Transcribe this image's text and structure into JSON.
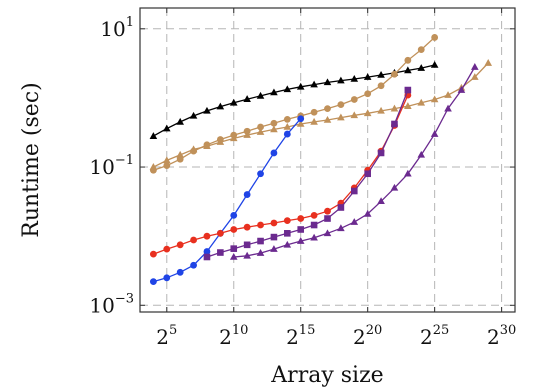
{
  "chart_data": {
    "type": "line",
    "xlabel": "Array size",
    "ylabel": "Runtime (sec)",
    "x_scale": "log2",
    "y_scale": "log10",
    "xlim": [
      3,
      31
    ],
    "ylim": [
      0.0008,
      20
    ],
    "grid": true,
    "x_ticks": [
      {
        "base": "2",
        "exp": "5",
        "value": 5
      },
      {
        "base": "2",
        "exp": "10",
        "value": 10
      },
      {
        "base": "2",
        "exp": "15",
        "value": 15
      },
      {
        "base": "2",
        "exp": "20",
        "value": 20
      },
      {
        "base": "2",
        "exp": "25",
        "value": 25
      },
      {
        "base": "2",
        "exp": "30",
        "value": 30
      }
    ],
    "y_ticks": [
      {
        "base": "10",
        "exp": "1",
        "value": 10
      },
      {
        "base": "10",
        "exp": "−1",
        "value": 0.1
      },
      {
        "base": "10",
        "exp": "−3",
        "value": 0.001
      }
    ],
    "series": [
      {
        "color": "#000000",
        "marker": "triangle",
        "x": [
          4,
          5,
          6,
          7,
          8,
          9,
          10,
          11,
          12,
          13,
          14,
          15,
          16,
          17,
          18,
          19,
          20,
          21,
          22,
          23,
          24,
          25
        ],
        "y": [
          0.28,
          0.36,
          0.45,
          0.55,
          0.65,
          0.75,
          0.85,
          0.96,
          1.07,
          1.2,
          1.33,
          1.45,
          1.56,
          1.68,
          1.78,
          1.88,
          2.0,
          2.15,
          2.3,
          2.5,
          2.7,
          3.0
        ]
      },
      {
        "color": "#c0915a",
        "marker": "circle",
        "x": [
          4,
          5,
          6,
          7,
          8,
          9,
          10,
          11,
          12,
          13,
          14,
          15,
          16,
          17,
          18,
          19,
          20,
          21,
          22,
          23,
          24,
          25
        ],
        "y": [
          0.09,
          0.105,
          0.13,
          0.17,
          0.21,
          0.25,
          0.29,
          0.33,
          0.38,
          0.43,
          0.49,
          0.55,
          0.62,
          0.7,
          0.8,
          0.95,
          1.15,
          1.5,
          2.2,
          3.5,
          5.0,
          7.5
        ]
      },
      {
        "color": "#c0915a",
        "marker": "triangle",
        "x": [
          4,
          5,
          6,
          7,
          8,
          9,
          10,
          11,
          12,
          13,
          14,
          15,
          16,
          17,
          18,
          19,
          20,
          21,
          22,
          23,
          24,
          25,
          26,
          27,
          28,
          29
        ],
        "y": [
          0.1,
          0.125,
          0.15,
          0.18,
          0.2,
          0.23,
          0.26,
          0.29,
          0.32,
          0.35,
          0.38,
          0.42,
          0.45,
          0.48,
          0.52,
          0.56,
          0.6,
          0.65,
          0.7,
          0.76,
          0.85,
          0.95,
          1.1,
          1.4,
          2.0,
          3.2
        ]
      },
      {
        "color": "#1f44e6",
        "marker": "circle",
        "x": [
          4,
          5,
          6,
          7,
          8,
          9,
          10,
          11,
          12,
          13,
          14,
          15
        ],
        "y": [
          0.0022,
          0.0025,
          0.003,
          0.0038,
          0.006,
          0.011,
          0.02,
          0.04,
          0.08,
          0.16,
          0.3,
          0.5
        ]
      },
      {
        "color": "#e8301f",
        "marker": "circle",
        "x": [
          4,
          5,
          6,
          7,
          8,
          9,
          10,
          11,
          12,
          13,
          14,
          15,
          16,
          17,
          18,
          19,
          20,
          21,
          22,
          23
        ],
        "y": [
          0.0055,
          0.0065,
          0.0075,
          0.0088,
          0.01,
          0.011,
          0.0125,
          0.0135,
          0.0145,
          0.0155,
          0.0168,
          0.018,
          0.02,
          0.023,
          0.03,
          0.05,
          0.09,
          0.17,
          0.4,
          1.1
        ]
      },
      {
        "color": "#6b2a8f",
        "marker": "square",
        "x": [
          8,
          9,
          10,
          11,
          12,
          13,
          14,
          15,
          16,
          17,
          18,
          19,
          20,
          21,
          22,
          23
        ],
        "y": [
          0.005,
          0.0058,
          0.0066,
          0.0075,
          0.0085,
          0.0097,
          0.011,
          0.0125,
          0.0145,
          0.018,
          0.026,
          0.045,
          0.08,
          0.16,
          0.42,
          1.3
        ]
      },
      {
        "color": "#6b2a8f",
        "marker": "triangle",
        "x": [
          10,
          11,
          12,
          13,
          14,
          15,
          16,
          17,
          18,
          19,
          20,
          21,
          22,
          23,
          24,
          25,
          26,
          27,
          28
        ],
        "y": [
          0.005,
          0.0052,
          0.0057,
          0.0065,
          0.0075,
          0.0085,
          0.0095,
          0.011,
          0.013,
          0.016,
          0.021,
          0.032,
          0.05,
          0.08,
          0.15,
          0.3,
          0.7,
          1.3,
          2.8
        ]
      }
    ]
  }
}
